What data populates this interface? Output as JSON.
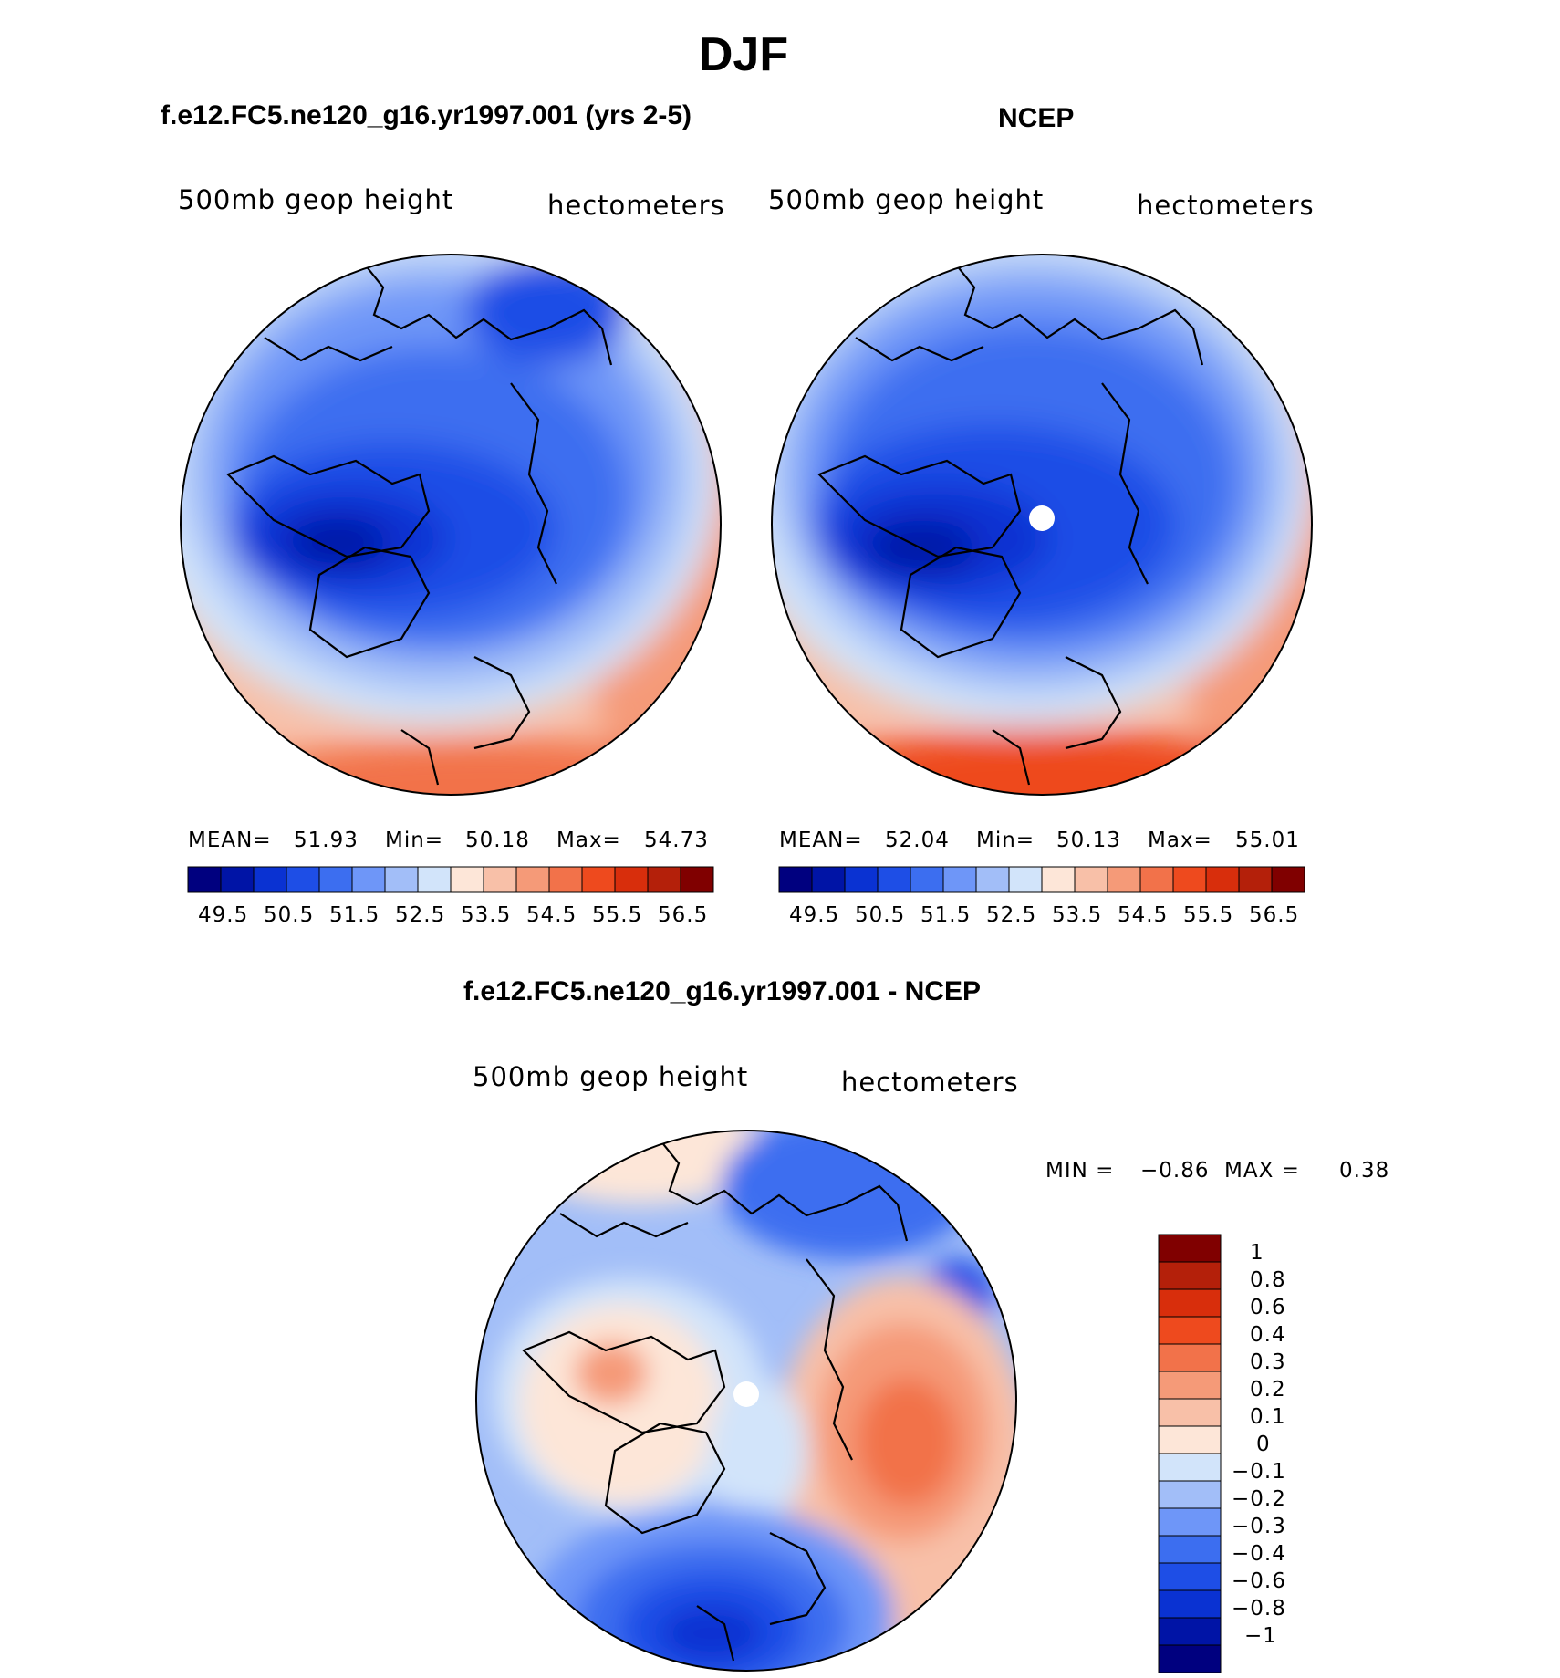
{
  "main_title": "DJF",
  "palette": [
    "#00007f",
    "#0014a6",
    "#0a32d2",
    "#1e4ee6",
    "#3c6ef0",
    "#6e96f8",
    "#a2bef8",
    "#d2e4fa",
    "#fde6d8",
    "#f8c0a8",
    "#f59a78",
    "#f2724a",
    "#ee4a1e",
    "#d82e0c",
    "#b4200a",
    "#800000"
  ],
  "chart_data": [
    {
      "type": "heatmap",
      "name": "model",
      "title": "f.e12.FC5.ne120_g16.yr1997.001 (yrs 2-5)",
      "variable": "500mb geop height",
      "units": "hectometers",
      "stats": {
        "mean_label": "MEAN=",
        "mean": "51.93",
        "min_label": "Min=",
        "min": "50.18",
        "max_label": "Max=",
        "max": "54.73"
      },
      "levels": [
        "49.5",
        "50.5",
        "51.5",
        "52.5",
        "53.5",
        "54.5",
        "55.5",
        "56.5"
      ]
    },
    {
      "type": "heatmap",
      "name": "ncep",
      "title": "NCEP",
      "variable": "500mb geop height",
      "units": "hectometers",
      "stats": {
        "mean_label": "MEAN=",
        "mean": "52.04",
        "min_label": "Min=",
        "min": "50.13",
        "max_label": "Max=",
        "max": "55.01"
      },
      "levels": [
        "49.5",
        "50.5",
        "51.5",
        "52.5",
        "53.5",
        "54.5",
        "55.5",
        "56.5"
      ]
    },
    {
      "type": "heatmap",
      "name": "difference",
      "title": "f.e12.FC5.ne120_g16.yr1997.001 - NCEP",
      "variable": "500mb geop height",
      "units": "hectometers",
      "stats": {
        "min_label": "MIN =",
        "min": "−0.86",
        "max_label": "MAX =",
        "max": "0.38"
      },
      "levels": [
        "1",
        "0.8",
        "0.6",
        "0.4",
        "0.3",
        "0.2",
        "0.1",
        "0",
        "−0.1",
        "−0.2",
        "−0.3",
        "−0.4",
        "−0.6",
        "−0.8",
        "−1"
      ]
    }
  ]
}
